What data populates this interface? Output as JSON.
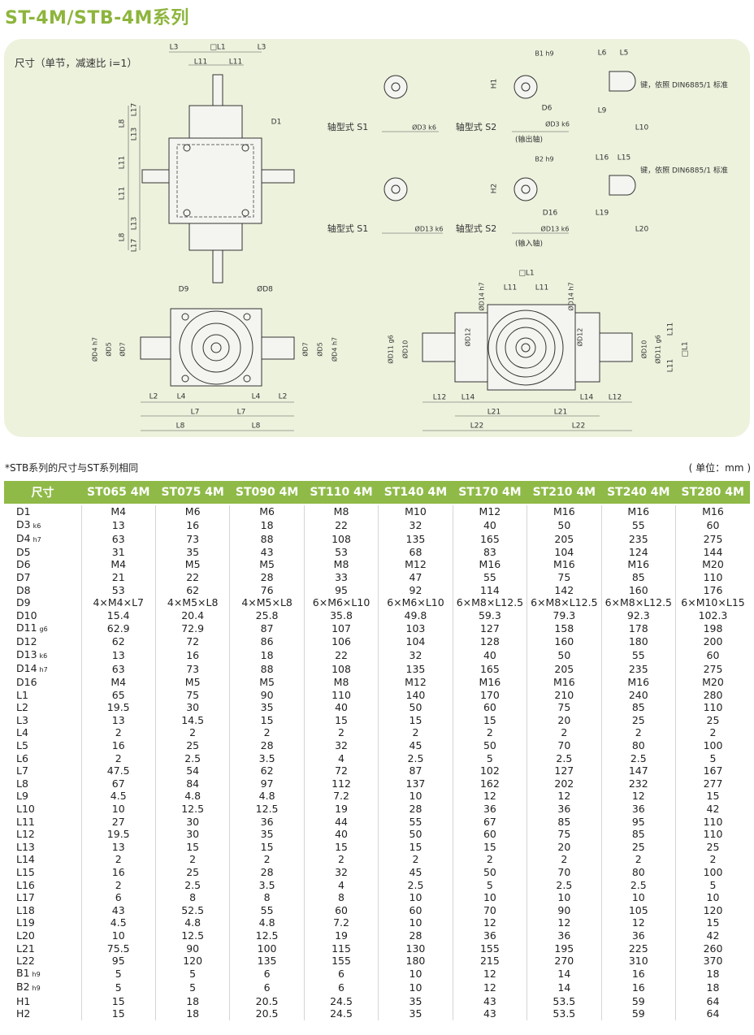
{
  "title": "ST-4M/STB-4M系列",
  "drawing": {
    "caption": "尺寸（单节，减速比 i=1）",
    "labels": [
      "L3",
      "□L1",
      "L3",
      "L11",
      "L11",
      "D1",
      "L17",
      "L8",
      "L13",
      "L11",
      "L11",
      "L13",
      "L8",
      "L17",
      "D9",
      "ØD8",
      "ØD4 h7",
      "ØD5",
      "ØD7",
      "ØD7",
      "ØD5",
      "ØD4 h7",
      "L2",
      "L4",
      "L4",
      "L2",
      "L7",
      "L7",
      "L8",
      "L8",
      "轴型式 S1",
      "ØD3 k6",
      "轴型式 S2",
      "B1 h9",
      "H1",
      "D6",
      "ØD3 k6",
      "(输出轴)",
      "L6",
      "L5",
      "键，依照 DIN6885/1 标准",
      "L9",
      "L10",
      "轴型式 S1",
      "ØD13 k6",
      "轴型式 S2",
      "B2 h9",
      "H2",
      "D16",
      "ØD13 k6",
      "(输入轴)",
      "L16",
      "L15",
      "键，依照 DIN6885/1 标准",
      "L19",
      "L20",
      "□L1",
      "L11",
      "L11",
      "ØD14 h7",
      "ØD14 h7",
      "ØD11 g6",
      "ØD10",
      "ØD12",
      "ØD12",
      "ØD10",
      "ØD11 g6",
      "L11",
      "□L1",
      "L11",
      "L12",
      "L14",
      "L14",
      "L12",
      "L21",
      "L21",
      "L22",
      "L22"
    ]
  },
  "note": "*STB系列的尺寸与ST系列相同",
  "unit": "( 单位：mm )",
  "table": {
    "header": [
      "尺寸",
      "ST065 4M",
      "ST075 4M",
      "ST090 4M",
      "ST110 4M",
      "ST140 4M",
      "ST170 4M",
      "ST210 4M",
      "ST240 4M",
      "ST280 4M"
    ],
    "rows": [
      {
        "name": "D1",
        "values": [
          "M4",
          "M6",
          "M6",
          "M8",
          "M10",
          "M12",
          "M16",
          "M16",
          "M16"
        ]
      },
      {
        "name": "D3",
        "sub": "k6",
        "values": [
          13,
          16,
          18,
          22,
          32,
          40,
          50,
          55,
          60
        ]
      },
      {
        "name": "D4",
        "sub": "h7",
        "values": [
          63,
          73,
          88,
          108,
          135,
          165,
          205,
          235,
          275
        ]
      },
      {
        "name": "D5",
        "values": [
          31,
          35,
          43,
          53,
          68,
          83,
          104,
          124,
          144
        ]
      },
      {
        "name": "D6",
        "values": [
          "M4",
          "M5",
          "M5",
          "M8",
          "M12",
          "M16",
          "M16",
          "M16",
          "M20"
        ]
      },
      {
        "name": "D7",
        "values": [
          21,
          22,
          28,
          33,
          47,
          55,
          75,
          85,
          110
        ]
      },
      {
        "name": "D8",
        "values": [
          53,
          62,
          76,
          95,
          92,
          114,
          142,
          160,
          176
        ]
      },
      {
        "name": "D9",
        "values": [
          "4×M4×L7",
          "4×M5×L8",
          "4×M5×L8",
          "6×M6×L10",
          "6×M6×L10",
          "6×M8×L12.5",
          "6×M8×L12.5",
          "6×M8×L12.5",
          "6×M10×L15"
        ]
      },
      {
        "name": "D10",
        "values": [
          15.4,
          20.4,
          25.8,
          35.8,
          49.8,
          59.3,
          79.3,
          92.3,
          102.3
        ]
      },
      {
        "name": "D11",
        "sub": "g6",
        "values": [
          62.9,
          72.9,
          87,
          107,
          103,
          127,
          158,
          178,
          198
        ]
      },
      {
        "name": "D12",
        "values": [
          62,
          72,
          86,
          106,
          104,
          128,
          160,
          180,
          200
        ]
      },
      {
        "name": "D13",
        "sub": "k6",
        "values": [
          13,
          16,
          18,
          22,
          32,
          40,
          50,
          55,
          60
        ]
      },
      {
        "name": "D14",
        "sub": "h7",
        "values": [
          63,
          73,
          88,
          108,
          135,
          165,
          205,
          235,
          275
        ]
      },
      {
        "name": "D16",
        "values": [
          "M4",
          "M5",
          "M5",
          "M8",
          "M12",
          "M16",
          "M16",
          "M16",
          "M20"
        ]
      },
      {
        "name": "L1",
        "values": [
          65,
          75,
          90,
          110,
          140,
          170,
          210,
          240,
          280
        ]
      },
      {
        "name": "L2",
        "values": [
          19.5,
          30,
          35,
          40,
          50,
          60,
          75,
          85,
          110
        ]
      },
      {
        "name": "L3",
        "values": [
          13,
          14.5,
          15,
          15,
          15,
          15,
          20,
          25,
          25
        ]
      },
      {
        "name": "L4",
        "values": [
          2,
          2,
          2,
          2,
          2,
          2,
          2,
          2,
          2
        ]
      },
      {
        "name": "L5",
        "values": [
          16,
          25,
          28,
          32,
          45,
          50,
          70,
          80,
          100
        ]
      },
      {
        "name": "L6",
        "values": [
          2,
          2.5,
          3.5,
          4,
          2.5,
          5,
          2.5,
          2.5,
          5
        ]
      },
      {
        "name": "L7",
        "values": [
          47.5,
          54,
          62,
          72,
          87,
          102,
          127,
          147,
          167
        ]
      },
      {
        "name": "L8",
        "values": [
          67,
          84,
          97,
          112,
          137,
          162,
          202,
          232,
          277
        ]
      },
      {
        "name": "L9",
        "values": [
          4.5,
          4.8,
          4.8,
          7.2,
          10,
          12,
          12,
          12,
          15
        ]
      },
      {
        "name": "L10",
        "values": [
          10,
          12.5,
          12.5,
          19,
          28,
          36,
          36,
          36,
          42
        ]
      },
      {
        "name": "L11",
        "values": [
          27,
          30,
          36,
          44,
          55,
          67,
          85,
          95,
          110
        ]
      },
      {
        "name": "L12",
        "values": [
          19.5,
          30,
          35,
          40,
          50,
          60,
          75,
          85,
          110
        ]
      },
      {
        "name": "L13",
        "values": [
          13,
          15,
          15,
          15,
          15,
          15,
          20,
          25,
          25
        ]
      },
      {
        "name": "L14",
        "values": [
          2,
          2,
          2,
          2,
          2,
          2,
          2,
          2,
          2
        ]
      },
      {
        "name": "L15",
        "values": [
          16,
          25,
          28,
          32,
          45,
          50,
          70,
          80,
          100
        ]
      },
      {
        "name": "L16",
        "values": [
          2,
          2.5,
          3.5,
          4,
          2.5,
          5,
          2.5,
          2.5,
          5
        ]
      },
      {
        "name": "L17",
        "values": [
          6,
          8,
          8,
          8,
          10,
          10,
          10,
          10,
          10
        ]
      },
      {
        "name": "L18",
        "values": [
          43,
          52.5,
          55,
          60,
          60,
          70,
          90,
          105,
          120
        ]
      },
      {
        "name": "L19",
        "values": [
          4.5,
          4.8,
          4.8,
          7.2,
          10,
          12,
          12,
          12,
          15
        ]
      },
      {
        "name": "L20",
        "values": [
          10,
          12.5,
          12.5,
          19,
          28,
          36,
          36,
          36,
          42
        ]
      },
      {
        "name": "L21",
        "values": [
          75.5,
          90,
          100,
          115,
          130,
          155,
          195,
          225,
          260
        ]
      },
      {
        "name": "L22",
        "values": [
          95,
          120,
          135,
          155,
          180,
          215,
          270,
          310,
          370
        ]
      },
      {
        "name": "B1",
        "sub": "h9",
        "values": [
          5,
          5,
          6,
          6,
          10,
          12,
          14,
          16,
          18
        ]
      },
      {
        "name": "B2",
        "sub": "h9",
        "values": [
          5,
          5,
          6,
          6,
          10,
          12,
          14,
          16,
          18
        ]
      },
      {
        "name": "H1",
        "values": [
          15,
          18,
          20.5,
          24.5,
          35,
          43,
          53.5,
          59,
          64
        ]
      },
      {
        "name": "H2",
        "values": [
          15,
          18,
          20.5,
          24.5,
          35,
          43,
          53.5,
          59,
          64
        ]
      }
    ]
  }
}
